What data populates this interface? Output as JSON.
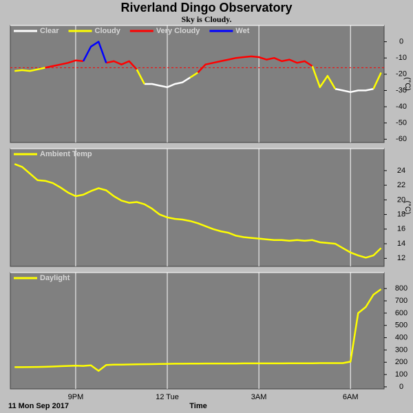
{
  "title": "Riverland Dingo Observatory",
  "subtitle": "Sky is Cloudy.",
  "chart_data": [
    {
      "type": "line",
      "ylabel": "(°C)",
      "x": [
        19,
        19.25,
        19.5,
        19.75,
        20,
        20.25,
        20.5,
        20.75,
        21,
        21.25,
        21.5,
        21.75,
        22,
        22.25,
        22.5,
        22.75,
        23,
        23.25,
        23.5,
        23.75,
        24,
        24.25,
        24.5,
        24.75,
        25,
        25.25,
        25.5,
        25.75,
        26,
        26.25,
        26.5,
        26.75,
        27,
        27.25,
        27.5,
        27.75,
        28,
        28.25,
        28.5,
        28.75,
        29,
        29.25,
        29.5,
        29.75,
        30,
        30.25,
        30.5,
        30.75,
        31
      ],
      "xlim": [
        18.86,
        31.1
      ],
      "xticks": [
        21,
        24,
        27,
        30
      ],
      "ylim": [
        -62,
        10
      ],
      "yticks": [
        0,
        -10,
        -20,
        -30,
        -40,
        -50,
        -60
      ],
      "reference_line": -16,
      "reference_color": "#ff0000",
      "series": [
        {
          "name": "Clear",
          "color": "#ffffff",
          "values": [
            null,
            null,
            null,
            null,
            null,
            null,
            null,
            null,
            null,
            null,
            null,
            null,
            null,
            null,
            null,
            null,
            null,
            -26,
            -26,
            -27,
            -28,
            -26,
            -25,
            -22,
            null,
            null,
            null,
            null,
            null,
            null,
            null,
            null,
            null,
            null,
            null,
            null,
            null,
            null,
            null,
            null,
            null,
            null,
            -29,
            -30,
            -31,
            -30,
            -30,
            -29,
            null
          ]
        },
        {
          "name": "Cloudy",
          "color": "#ffff00",
          "values": [
            -18,
            -17.5,
            -18,
            -17,
            -16,
            null,
            null,
            null,
            null,
            null,
            null,
            null,
            null,
            null,
            null,
            null,
            -17,
            -26,
            null,
            null,
            null,
            null,
            null,
            -22,
            -19,
            null,
            null,
            null,
            null,
            null,
            null,
            null,
            null,
            null,
            null,
            null,
            null,
            null,
            null,
            -15,
            -28,
            -21,
            -29,
            null,
            null,
            null,
            null,
            -29,
            -19
          ]
        },
        {
          "name": "Very Cloudy",
          "color": "#ff0000",
          "values": [
            null,
            null,
            null,
            null,
            -16,
            -15,
            -14,
            -13,
            -11.5,
            -12,
            null,
            null,
            -13,
            -12,
            -14,
            -12,
            -17,
            null,
            null,
            null,
            null,
            null,
            null,
            null,
            -19,
            -14,
            -13,
            -12,
            -11,
            -10,
            -9.5,
            -9,
            -9.5,
            -11,
            -10,
            -12,
            -11,
            -13,
            -12,
            -15,
            null,
            null,
            null,
            null,
            null,
            null,
            null,
            null,
            null
          ]
        },
        {
          "name": "Wet",
          "color": "#0000ff",
          "values": [
            null,
            null,
            null,
            null,
            null,
            null,
            null,
            null,
            null,
            -12,
            -3,
            0,
            -13,
            null,
            null,
            null,
            null,
            null,
            null,
            null,
            null,
            null,
            null,
            null,
            null,
            null,
            null,
            null,
            null,
            null,
            null,
            null,
            null,
            null,
            null,
            null,
            null,
            null,
            null,
            null,
            null,
            null,
            null,
            null,
            null,
            null,
            null,
            null,
            null
          ]
        }
      ]
    },
    {
      "type": "line",
      "ylabel": "(°C)",
      "x": [
        19,
        19.25,
        19.5,
        19.75,
        20,
        20.25,
        20.5,
        20.75,
        21,
        21.25,
        21.5,
        21.75,
        22,
        22.25,
        22.5,
        22.75,
        23,
        23.25,
        23.5,
        23.75,
        24,
        24.25,
        24.5,
        24.75,
        25,
        25.25,
        25.5,
        25.75,
        26,
        26.25,
        26.5,
        26.75,
        27,
        27.25,
        27.5,
        27.75,
        28,
        28.25,
        28.5,
        28.75,
        29,
        29.25,
        29.5,
        29.75,
        30,
        30.25,
        30.5,
        30.75,
        31
      ],
      "xlim": [
        18.86,
        31.1
      ],
      "xticks": [
        21,
        24,
        27,
        30
      ],
      "ylim": [
        10.9,
        27
      ],
      "yticks": [
        12,
        14,
        16,
        18,
        20,
        22,
        24
      ],
      "series": [
        {
          "name": "Ambient Temp",
          "color": "#ffff00",
          "values": [
            24.9,
            24.5,
            23.6,
            22.7,
            22.6,
            22.3,
            21.7,
            21.0,
            20.5,
            20.7,
            21.2,
            21.6,
            21.3,
            20.5,
            19.9,
            19.6,
            19.7,
            19.4,
            18.8,
            18.0,
            17.6,
            17.4,
            17.3,
            17.1,
            16.8,
            16.4,
            16.0,
            15.7,
            15.5,
            15.1,
            14.9,
            14.8,
            14.7,
            14.6,
            14.5,
            14.5,
            14.4,
            14.5,
            14.4,
            14.5,
            14.2,
            14.1,
            14.0,
            13.4,
            12.8,
            12.4,
            12.1,
            12.4,
            13.4
          ]
        }
      ]
    },
    {
      "type": "line",
      "xlabel": "Time",
      "x_start_label": "11 Mon Sep 2017",
      "x": [
        19,
        19.25,
        19.5,
        19.75,
        20,
        20.25,
        20.5,
        20.75,
        21,
        21.25,
        21.5,
        21.75,
        22,
        22.25,
        22.5,
        22.75,
        23,
        23.25,
        23.5,
        23.75,
        24,
        24.25,
        24.5,
        24.75,
        25,
        25.25,
        25.5,
        25.75,
        26,
        26.25,
        26.5,
        26.75,
        27,
        27.25,
        27.5,
        27.75,
        28,
        28.25,
        28.5,
        28.75,
        29,
        29.25,
        29.5,
        29.75,
        30,
        30.25,
        30.5,
        30.75,
        31
      ],
      "xlim": [
        18.86,
        31.1
      ],
      "xticks": [
        {
          "value": 21,
          "label": "9PM"
        },
        {
          "value": 24,
          "label": "12 Tue"
        },
        {
          "value": 27,
          "label": "3AM"
        },
        {
          "value": 30,
          "label": "6AM"
        }
      ],
      "ylim": [
        -17,
        930
      ],
      "yticks": [
        0,
        100,
        200,
        300,
        400,
        500,
        600,
        700,
        800
      ],
      "series": [
        {
          "name": "Daylight",
          "color": "#ffff00",
          "values": [
            160,
            160,
            161,
            162,
            163,
            165,
            168,
            170,
            172,
            170,
            175,
            130,
            178,
            180,
            181,
            182,
            183,
            184,
            185,
            186,
            187,
            188,
            188,
            189,
            189,
            190,
            190,
            190,
            190,
            190,
            191,
            191,
            191,
            191,
            191,
            191,
            192,
            192,
            192,
            192,
            193,
            193,
            193,
            193,
            205,
            600,
            650,
            750,
            795
          ]
        }
      ]
    }
  ]
}
